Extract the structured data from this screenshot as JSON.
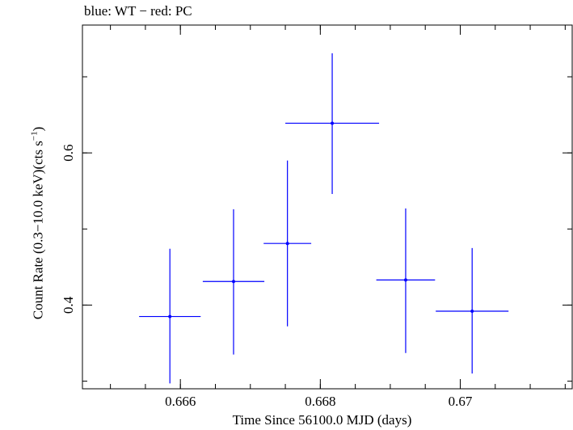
{
  "chart_data": {
    "type": "scatter",
    "title": "blue: WT − red: PC",
    "xlabel": "Time Since 56100.0 MJD (days)",
    "ylabel": {
      "main": "Count Rate (0.3−10.0 keV)(cts s",
      "sup": "−1",
      "close": ")"
    },
    "xlim": [
      0.6646,
      0.6716
    ],
    "ylim": [
      0.29,
      0.768
    ],
    "xticks": [
      {
        "value": 0.666,
        "label": "0.666"
      },
      {
        "value": 0.668,
        "label": "0.668"
      },
      {
        "value": 0.67,
        "label": "0.67"
      }
    ],
    "yticks": [
      {
        "value": 0.4,
        "label": "0.4"
      },
      {
        "value": 0.6,
        "label": "0.6"
      }
    ],
    "x_minor_step": 0.0005,
    "y_minor_step": 0.1,
    "grid": false,
    "series": [
      {
        "color": "#0000ff",
        "points": [
          {
            "x": 0.66585,
            "y": 0.385,
            "xerr": 0.00044,
            "yerr_low": 0.088,
            "yerr_high": 0.089
          },
          {
            "x": 0.66676,
            "y": 0.431,
            "xerr": 0.00044,
            "yerr_low": 0.096,
            "yerr_high": 0.095
          },
          {
            "x": 0.66753,
            "y": 0.481,
            "xerr": 0.00034,
            "yerr_low": 0.109,
            "yerr_high": 0.109
          },
          {
            "x": 0.66817,
            "y": 0.639,
            "xerr": 0.00067,
            "yerr_low": 0.093,
            "yerr_high": 0.092
          },
          {
            "x": 0.66922,
            "y": 0.433,
            "xerr": 0.00042,
            "yerr_low": 0.096,
            "yerr_high": 0.094
          },
          {
            "x": 0.67017,
            "y": 0.392,
            "xerr": 0.00052,
            "yerr_low": 0.082,
            "yerr_high": 0.083
          }
        ]
      }
    ]
  }
}
